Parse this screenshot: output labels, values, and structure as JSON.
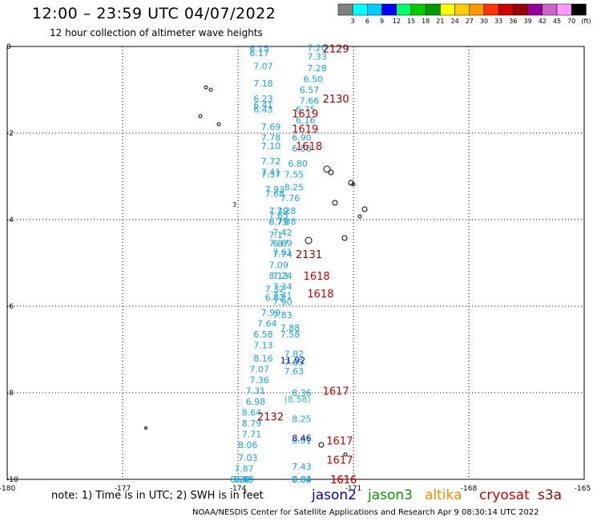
{
  "title": "12:00 – 23:59 UTC 04/07/2022",
  "subtitle": "12 hour collection of altimeter wave heights",
  "note": "note:  1) Time is in UTC;  2) SWH is in feet",
  "credit": "NOAA/NESDIS Center for Satellite Applications and Research   Apr  9 08:30:14 UTC 2022",
  "satellites": [
    {
      "name": "jason2",
      "color": "#0000cc"
    },
    {
      "name": "jason3",
      "color": "#009900"
    },
    {
      "name": "altika",
      "color": "#ff8800"
    },
    {
      "name": "cryosat",
      "color": "#cc0000"
    },
    {
      "name": "s3a",
      "color": "#990000"
    }
  ],
  "colorbar": {
    "labels": [
      "3",
      "6",
      "9",
      "12",
      "15",
      "18",
      "21",
      "24",
      "27",
      "30",
      "33",
      "36",
      "39",
      "42",
      "45",
      "70"
    ],
    "unit": "(ft)",
    "colors": [
      "#808080",
      "#00ffff",
      "#00ccff",
      "#0000ff",
      "#00ff66",
      "#00cc00",
      "#009900",
      "#ffff00",
      "#ffcc00",
      "#ff9900",
      "#ff3300",
      "#cc0000",
      "#990000",
      "#990099",
      "#cc66cc",
      "#ff99ff",
      "#000000"
    ]
  },
  "chart_data": {
    "type": "scatter",
    "xlim": [
      -180,
      -165
    ],
    "ylim": [
      -10,
      0
    ],
    "x_ticks": [
      "-180",
      "-177",
      "-174",
      "-171",
      "-168",
      "-165"
    ],
    "y_ticks": [
      "0",
      "-2",
      "-4",
      "-6",
      "-8",
      "-10"
    ],
    "grid": true,
    "swh_labels": [
      {
        "x": -173.7,
        "y": -0.05,
        "v": "6.15"
      },
      {
        "x": -173.7,
        "y": -0.15,
        "v": "6.17"
      },
      {
        "x": -173.6,
        "y": -0.45,
        "v": "7.07"
      },
      {
        "x": -173.6,
        "y": -0.85,
        "v": "7.18"
      },
      {
        "x": -173.6,
        "y": -1.2,
        "v": "6.23"
      },
      {
        "x": -173.6,
        "y": -1.35,
        "v": "6.41"
      },
      {
        "x": -173.6,
        "y": -1.45,
        "v": "6.43"
      },
      {
        "x": -173.4,
        "y": -1.85,
        "v": "7.69"
      },
      {
        "x": -173.4,
        "y": -2.1,
        "v": "7.78"
      },
      {
        "x": -173.4,
        "y": -2.3,
        "v": "7.10"
      },
      {
        "x": -173.4,
        "y": -2.65,
        "v": "7.72"
      },
      {
        "x": -173.4,
        "y": -2.9,
        "v": "7.41"
      },
      {
        "x": -173.4,
        "y": -2.95,
        "v": "7.37"
      },
      {
        "x": -173.3,
        "y": -3.3,
        "v": "7.93"
      },
      {
        "x": -173.3,
        "y": -3.4,
        "v": "7.68"
      },
      {
        "x": -173.2,
        "y": -3.8,
        "v": "7.39"
      },
      {
        "x": -173.2,
        "y": -3.9,
        "v": "7.65"
      },
      {
        "x": -173.2,
        "y": -4.05,
        "v": "6.71"
      },
      {
        "x": -173.2,
        "y": -4.05,
        "v": "6.79"
      },
      {
        "x": -173.2,
        "y": -4.35,
        "v": "7.1"
      },
      {
        "x": -173.2,
        "y": -4.55,
        "v": "7.87"
      },
      {
        "x": -173.1,
        "y": -4.75,
        "v": "7.61"
      },
      {
        "x": -173.2,
        "y": -5.05,
        "v": "7.09"
      },
      {
        "x": -173.2,
        "y": -5.3,
        "v": "8.13"
      },
      {
        "x": -173.3,
        "y": -5.6,
        "v": "7.32"
      },
      {
        "x": -173.3,
        "y": -5.8,
        "v": "6.82"
      },
      {
        "x": -173.4,
        "y": -6.15,
        "v": "7.99"
      },
      {
        "x": -173.5,
        "y": -6.4,
        "v": "7.64"
      },
      {
        "x": -173.6,
        "y": -6.65,
        "v": "6.58"
      },
      {
        "x": -173.6,
        "y": -6.9,
        "v": "7.13"
      },
      {
        "x": -173.6,
        "y": -7.2,
        "v": "8.16"
      },
      {
        "x": -173.7,
        "y": -7.45,
        "v": "7.07"
      },
      {
        "x": -173.7,
        "y": -7.7,
        "v": "7.36"
      },
      {
        "x": -173.8,
        "y": -7.95,
        "v": "7.31"
      },
      {
        "x": -173.8,
        "y": -8.2,
        "v": "6.98"
      },
      {
        "x": -173.9,
        "y": -8.45,
        "v": "8.64"
      },
      {
        "x": -173.9,
        "y": -8.7,
        "v": "8.79"
      },
      {
        "x": -173.9,
        "y": -8.95,
        "v": "7.71"
      },
      {
        "x": -174.0,
        "y": -9.2,
        "v": "8.06"
      },
      {
        "x": -174.0,
        "y": -9.5,
        "v": "7.03"
      },
      {
        "x": -174.1,
        "y": -9.75,
        "v": "7.87"
      },
      {
        "x": -174.1,
        "y": -10.0,
        "v": "8.45"
      },
      {
        "x": -174.1,
        "y": -10.25,
        "v": "7.89"
      },
      {
        "x": -174.2,
        "y": -10.5,
        "v": "8.20"
      },
      {
        "x": -172.2,
        "y": -0.03,
        "v": "7.20"
      },
      {
        "x": -172.2,
        "y": -0.23,
        "v": "7.33"
      },
      {
        "x": -172.2,
        "y": -0.5,
        "v": "7.28"
      },
      {
        "x": -172.3,
        "y": -0.75,
        "v": "6.50"
      },
      {
        "x": -172.4,
        "y": -1.0,
        "v": "6.57"
      },
      {
        "x": -172.4,
        "y": -1.25,
        "v": "7.66"
      },
      {
        "x": -172.5,
        "y": -1.45,
        "v": "6.75"
      },
      {
        "x": -172.5,
        "y": -1.7,
        "v": "6.16"
      },
      {
        "x": -172.6,
        "y": -2.1,
        "v": "6.90"
      },
      {
        "x": -172.6,
        "y": -2.35,
        "v": "6.88"
      },
      {
        "x": -172.7,
        "y": -2.7,
        "v": "6.80"
      },
      {
        "x": -172.8,
        "y": -2.95,
        "v": "7.55"
      },
      {
        "x": -172.8,
        "y": -3.25,
        "v": "8.25"
      },
      {
        "x": -172.9,
        "y": -3.5,
        "v": "7.76"
      },
      {
        "x": -173.0,
        "y": -3.8,
        "v": "7.28"
      },
      {
        "x": -173.0,
        "y": -4.05,
        "v": "7.38"
      },
      {
        "x": -173.1,
        "y": -4.3,
        "v": "7.42"
      },
      {
        "x": -173.1,
        "y": -4.55,
        "v": "6.69"
      },
      {
        "x": -173.1,
        "y": -4.8,
        "v": "7.74"
      },
      {
        "x": -173.1,
        "y": -5.3,
        "v": "7.24"
      },
      {
        "x": -173.1,
        "y": -5.55,
        "v": "7.34"
      },
      {
        "x": -173.1,
        "y": -5.75,
        "v": "7.41"
      },
      {
        "x": -173.1,
        "y": -5.9,
        "v": "7.90"
      },
      {
        "x": -173.1,
        "y": -6.2,
        "v": "7.83"
      },
      {
        "x": -172.9,
        "y": -6.5,
        "v": "7.88"
      },
      {
        "x": -172.9,
        "y": -6.65,
        "v": "7.58"
      },
      {
        "x": -172.8,
        "y": -7.1,
        "v": "7.82"
      },
      {
        "x": -172.8,
        "y": -7.3,
        "v": "7.63"
      },
      {
        "x": -172.8,
        "y": -7.5,
        "v": "7.63"
      },
      {
        "x": -172.6,
        "y": -8.0,
        "v": "8.36"
      },
      {
        "x": -172.6,
        "y": -8.6,
        "v": "8.25"
      },
      {
        "x": -172.6,
        "y": -9.1,
        "v": "8.01"
      },
      {
        "x": -172.6,
        "y": -9.7,
        "v": "7.43"
      },
      {
        "x": -172.6,
        "y": -10.2,
        "v": "8.64"
      },
      {
        "x": -172.6,
        "y": -10.8,
        "v": "7.32"
      },
      {
        "x": -172.6,
        "y": -10.95,
        "v": "8.04"
      },
      {
        "x": -172.9,
        "y": -7.25,
        "v": "11.92",
        "color": "#0000cc"
      },
      {
        "x": -172.6,
        "y": -9.05,
        "v": "8.46",
        "color": "#0000cc"
      },
      {
        "x": -172.8,
        "y": -8.15,
        "v": "(8.58)",
        "color": "#33cc99"
      }
    ],
    "time_labels": [
      {
        "x": -171.8,
        "y": -0.05,
        "v": "2129",
        "color": "#990000"
      },
      {
        "x": -171.8,
        "y": -1.2,
        "v": "2130",
        "color": "#990000"
      },
      {
        "x": -172.6,
        "y": -1.55,
        "v": "1619",
        "color": "#cc0000"
      },
      {
        "x": -172.6,
        "y": -1.9,
        "v": "1619",
        "color": "#cc0000"
      },
      {
        "x": -172.5,
        "y": -2.3,
        "v": "1618",
        "color": "#cc0000"
      },
      {
        "x": -172.5,
        "y": -4.8,
        "v": "2131",
        "color": "#990000"
      },
      {
        "x": -172.3,
        "y": -5.3,
        "v": "1618",
        "color": "#cc0000"
      },
      {
        "x": -172.2,
        "y": -5.7,
        "v": "1618",
        "color": "#cc0000"
      },
      {
        "x": -171.8,
        "y": -7.95,
        "v": "1617",
        "color": "#cc0000"
      },
      {
        "x": -173.5,
        "y": -8.55,
        "v": "2132",
        "color": "#990000"
      },
      {
        "x": -171.7,
        "y": -9.1,
        "v": "1617",
        "color": "#cc0000"
      },
      {
        "x": -171.7,
        "y": -9.55,
        "v": "1617",
        "color": "#cc0000"
      },
      {
        "x": -171.6,
        "y": -10.75,
        "v": "1616",
        "color": "#cc0000"
      },
      {
        "x": -171.6,
        "y": -10.9,
        "v": "1616",
        "color": "#cc0000"
      }
    ]
  }
}
